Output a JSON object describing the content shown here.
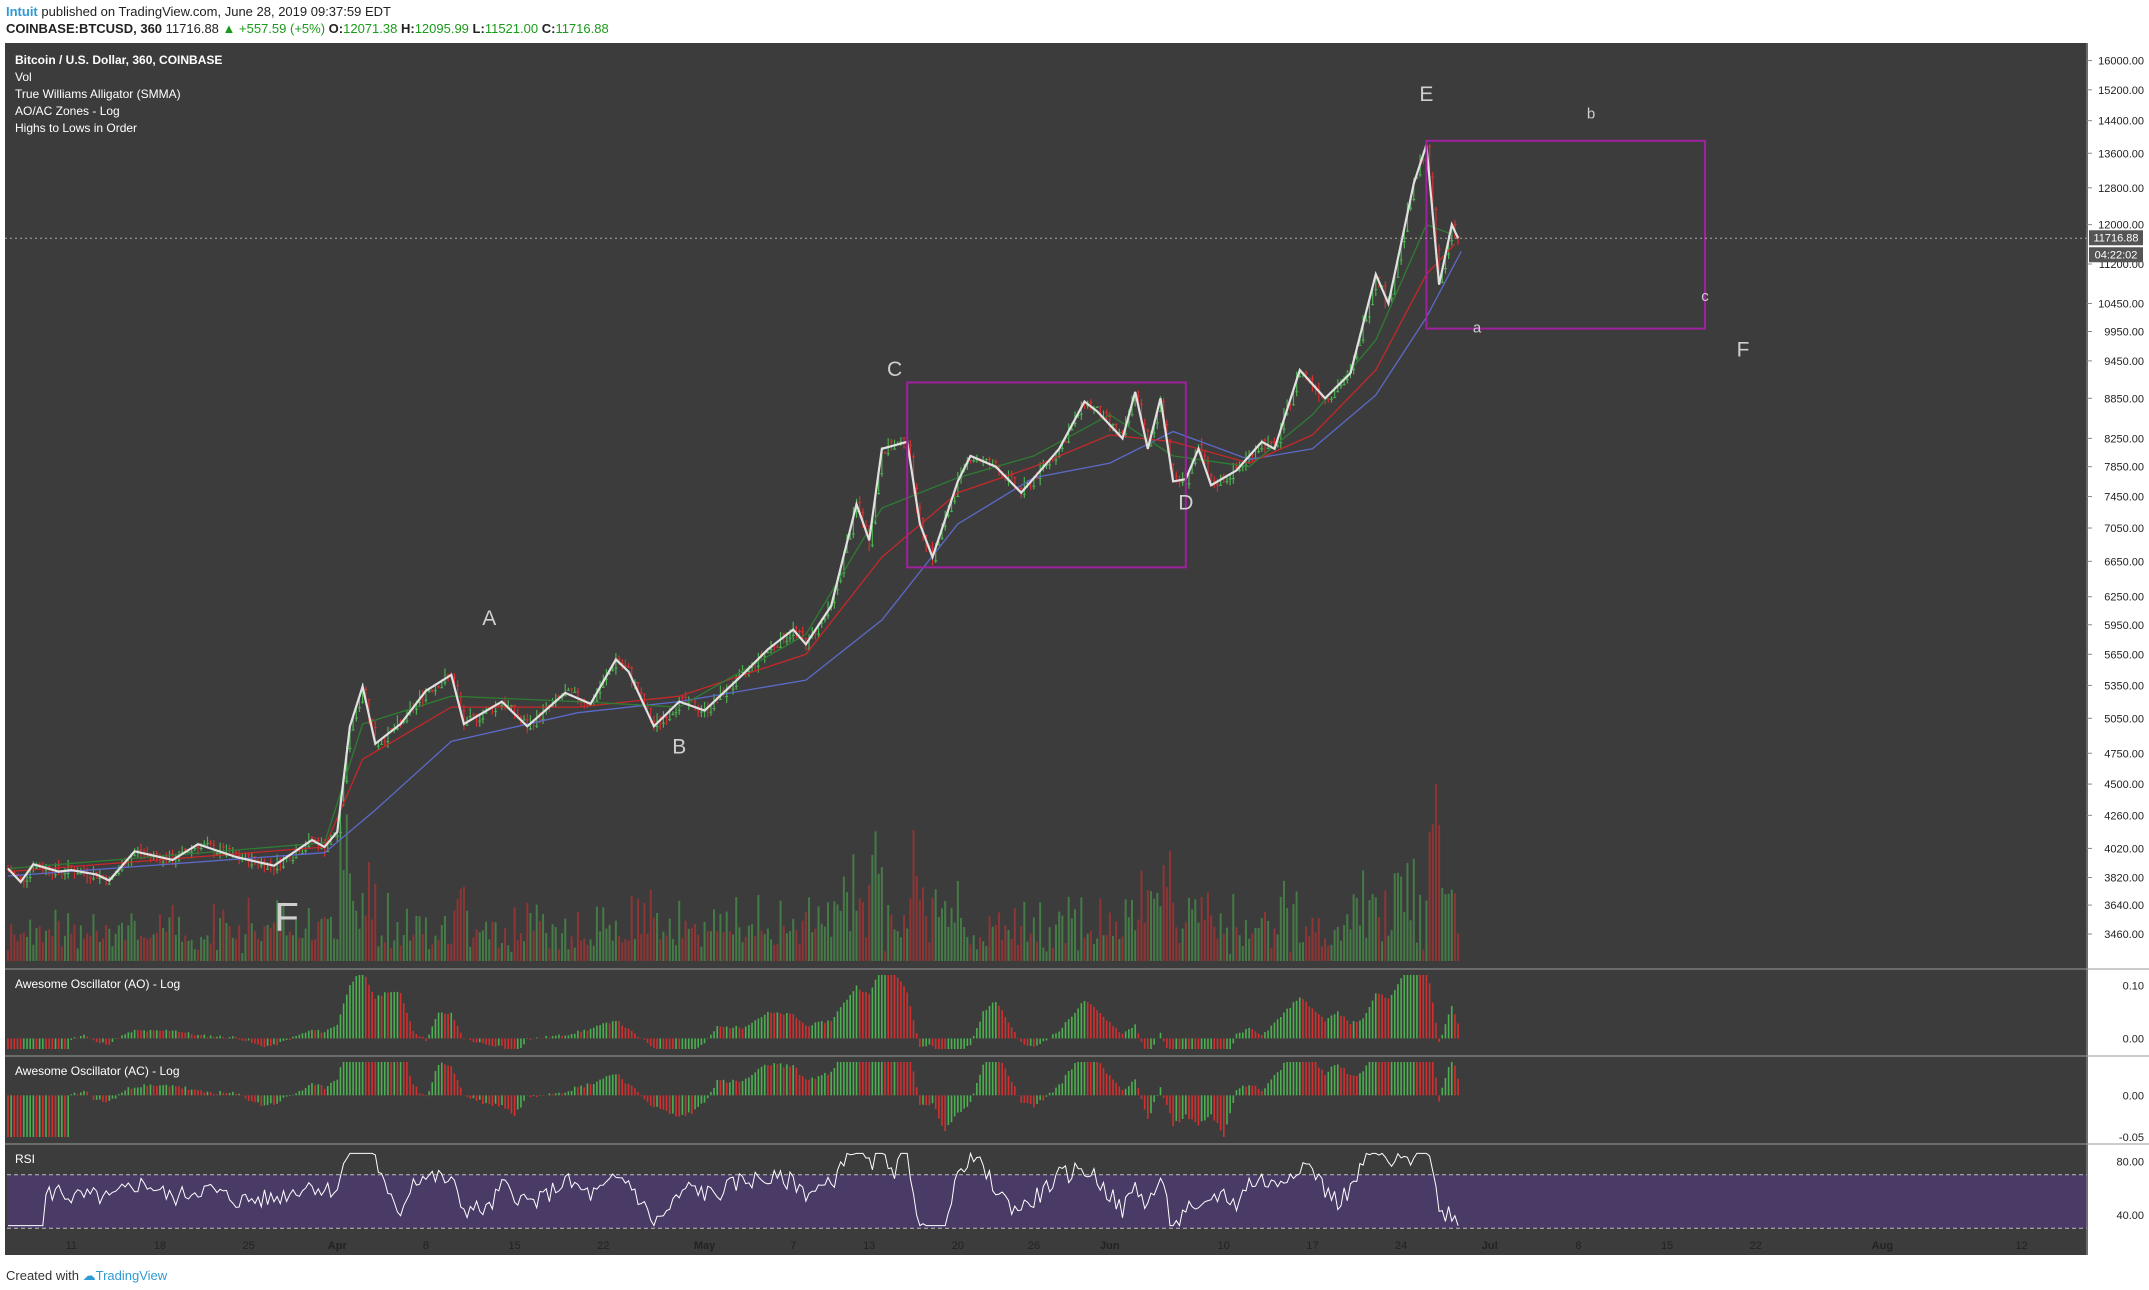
{
  "header": {
    "author": "Intuit",
    "published_text": "published on TradingView.com, June 28, 2019 09:37:59 EDT",
    "symbol": "COINBASE:BTCUSD, 360",
    "price": "11716.88",
    "change": "▲ +557.59 (+5%)",
    "o_label": "O:",
    "o_value": "12071.38",
    "h_label": "H:",
    "h_value": "12095.99",
    "l_label": "L:",
    "l_value": "11521.00",
    "c_label": "C:",
    "c_value": "11716.88"
  },
  "legend": {
    "title": "Bitcoin / U.S. Dollar, 360, COINBASE",
    "items": [
      "Vol",
      "True Williams Alligator (SMMA)",
      "AO/AC Zones - Log",
      "Highs to Lows in Order"
    ]
  },
  "panels": {
    "ao_title": "Awesome Oscillator (AO) - Log",
    "ac_title": "Awesome Oscillator (AC) - Log",
    "rsi_title": "RSI"
  },
  "price_badge": "11716.88",
  "countdown_badge": "04:22:02",
  "footer": {
    "created_with": "Created with",
    "brand": "TradingView"
  },
  "colors": {
    "background": "#3c3c3c",
    "up": "#4caf50",
    "down": "#d32f2f",
    "zigzag": "#e0e0e0",
    "box": "#a020a0",
    "jaw": "#5b6ac9",
    "teeth": "#c62828",
    "lips": "#2e7d32",
    "rsi_band": "#4a3a66"
  },
  "chart_data": {
    "type": "candlestick",
    "title": "Bitcoin / U.S. Dollar, 360, COINBASE",
    "scale": "log",
    "ylim": [
      3300,
      16500
    ],
    "y_ticks": [
      "16000.00",
      "15200.00",
      "14400.00",
      "13600.00",
      "12800.00",
      "12000.00",
      "11200.00",
      "10450.00",
      "9950.00",
      "9450.00",
      "8850.00",
      "8250.00",
      "7850.00",
      "7450.00",
      "7050.00",
      "6650.00",
      "6250.00",
      "5950.00",
      "5650.00",
      "5350.00",
      "5050.00",
      "4750.00",
      "4500.00",
      "4260.00",
      "4020.00",
      "3820.00",
      "3640.00",
      "3460.00"
    ],
    "x_ticks": [
      "11",
      "18",
      "25",
      "Apr",
      "8",
      "15",
      "22",
      "May",
      "7",
      "13",
      "20",
      "26",
      "Jun",
      "10",
      "17",
      "24",
      "Jul",
      "8",
      "15",
      "22",
      "Aug",
      "12"
    ],
    "x_tick_dates": [
      "2019-03-11",
      "2019-03-18",
      "2019-03-25",
      "2019-04-01",
      "2019-04-08",
      "2019-04-15",
      "2019-04-22",
      "2019-04-30",
      "2019-05-07",
      "2019-05-13",
      "2019-05-20",
      "2019-05-26",
      "2019-06-01",
      "2019-06-10",
      "2019-06-17",
      "2019-06-24",
      "2019-07-01",
      "2019-07-08",
      "2019-07-15",
      "2019-07-22",
      "2019-08-01",
      "2019-08-12"
    ],
    "x_range": [
      "2019-03-06",
      "2019-08-17"
    ],
    "last_price": 11716.88,
    "grid": false,
    "zigzag": [
      [
        "2019-03-06",
        3880
      ],
      [
        "2019-03-07",
        3790
      ],
      [
        "2019-03-08",
        3910
      ],
      [
        "2019-03-10",
        3860
      ],
      [
        "2019-03-11",
        3870
      ],
      [
        "2019-03-13",
        3840
      ],
      [
        "2019-03-14",
        3800
      ],
      [
        "2019-03-16",
        4000
      ],
      [
        "2019-03-19",
        3940
      ],
      [
        "2019-03-21",
        4050
      ],
      [
        "2019-03-24",
        3960
      ],
      [
        "2019-03-27",
        3900
      ],
      [
        "2019-03-30",
        4080
      ],
      [
        "2019-03-31",
        4030
      ],
      [
        "2019-04-01",
        4140
      ],
      [
        "2019-04-02",
        4980
      ],
      [
        "2019-04-03",
        5340
      ],
      [
        "2019-04-04",
        4830
      ],
      [
        "2019-04-06",
        5000
      ],
      [
        "2019-04-08",
        5300
      ],
      [
        "2019-04-10",
        5450
      ],
      [
        "2019-04-11",
        5000
      ],
      [
        "2019-04-14",
        5200
      ],
      [
        "2019-04-16",
        4980
      ],
      [
        "2019-04-19",
        5280
      ],
      [
        "2019-04-21",
        5180
      ],
      [
        "2019-04-23",
        5600
      ],
      [
        "2019-04-24",
        5480
      ],
      [
        "2019-04-26",
        4980
      ],
      [
        "2019-04-28",
        5200
      ],
      [
        "2019-04-30",
        5120
      ],
      [
        "2019-05-03",
        5450
      ],
      [
        "2019-05-05",
        5700
      ],
      [
        "2019-05-07",
        5900
      ],
      [
        "2019-05-08",
        5750
      ],
      [
        "2019-05-10",
        6150
      ],
      [
        "2019-05-12",
        7350
      ],
      [
        "2019-05-13",
        6900
      ],
      [
        "2019-05-14",
        8100
      ],
      [
        "2019-05-16",
        8200
      ],
      [
        "2019-05-17",
        7100
      ],
      [
        "2019-05-18",
        6700
      ],
      [
        "2019-05-20",
        7650
      ],
      [
        "2019-05-21",
        8000
      ],
      [
        "2019-05-23",
        7850
      ],
      [
        "2019-05-25",
        7500
      ],
      [
        "2019-05-28",
        8100
      ],
      [
        "2019-05-30",
        8800
      ],
      [
        "2019-05-31",
        8650
      ],
      [
        "2019-06-02",
        8250
      ],
      [
        "2019-06-03",
        8950
      ],
      [
        "2019-06-04",
        8100
      ],
      [
        "2019-06-05",
        8850
      ],
      [
        "2019-06-06",
        7650
      ],
      [
        "2019-06-07",
        7680
      ],
      [
        "2019-06-08",
        8100
      ],
      [
        "2019-06-09",
        7600
      ],
      [
        "2019-06-11",
        7800
      ],
      [
        "2019-06-13",
        8200
      ],
      [
        "2019-06-14",
        8100
      ],
      [
        "2019-06-16",
        9300
      ],
      [
        "2019-06-18",
        8850
      ],
      [
        "2019-06-20",
        9250
      ],
      [
        "2019-06-22",
        11000
      ],
      [
        "2019-06-23",
        10450
      ],
      [
        "2019-06-25",
        12900
      ],
      [
        "2019-06-26",
        13800
      ],
      [
        "2019-06-27",
        10800
      ],
      [
        "2019-06-28",
        12000
      ],
      [
        "2019-06-28T12",
        11716.88
      ]
    ],
    "alligator": {
      "jaw": [
        [
          "2019-03-06",
          3830
        ],
        [
          "2019-03-31",
          3990
        ],
        [
          "2019-04-04",
          4300
        ],
        [
          "2019-04-10",
          4850
        ],
        [
          "2019-04-20",
          5100
        ],
        [
          "2019-04-28",
          5200
        ],
        [
          "2019-05-08",
          5400
        ],
        [
          "2019-05-14",
          6000
        ],
        [
          "2019-05-20",
          7100
        ],
        [
          "2019-05-26",
          7700
        ],
        [
          "2019-06-01",
          7900
        ],
        [
          "2019-06-06",
          8350
        ],
        [
          "2019-06-12",
          7950
        ],
        [
          "2019-06-17",
          8100
        ],
        [
          "2019-06-22",
          8900
        ],
        [
          "2019-06-26",
          10200
        ],
        [
          "2019-06-28T18",
          11450
        ]
      ],
      "teeth": [
        [
          "2019-03-06",
          3860
        ],
        [
          "2019-03-31",
          4030
        ],
        [
          "2019-04-03",
          4700
        ],
        [
          "2019-04-10",
          5150
        ],
        [
          "2019-04-20",
          5150
        ],
        [
          "2019-04-28",
          5250
        ],
        [
          "2019-05-08",
          5650
        ],
        [
          "2019-05-14",
          6700
        ],
        [
          "2019-05-20",
          7500
        ],
        [
          "2019-05-26",
          7850
        ],
        [
          "2019-06-01",
          8300
        ],
        [
          "2019-06-06",
          8200
        ],
        [
          "2019-06-12",
          7900
        ],
        [
          "2019-06-17",
          8300
        ],
        [
          "2019-06-22",
          9300
        ],
        [
          "2019-06-26",
          11000
        ],
        [
          "2019-06-28T06",
          11600
        ]
      ],
      "lips": [
        [
          "2019-03-06",
          3880
        ],
        [
          "2019-03-31",
          4060
        ],
        [
          "2019-04-03",
          5000
        ],
        [
          "2019-04-10",
          5250
        ],
        [
          "2019-04-20",
          5200
        ],
        [
          "2019-04-28",
          5150
        ],
        [
          "2019-05-08",
          5850
        ],
        [
          "2019-05-14",
          7300
        ],
        [
          "2019-05-20",
          7700
        ],
        [
          "2019-05-26",
          8000
        ],
        [
          "2019-06-01",
          8600
        ],
        [
          "2019-06-06",
          8000
        ],
        [
          "2019-06-12",
          7850
        ],
        [
          "2019-06-17",
          8600
        ],
        [
          "2019-06-22",
          9800
        ],
        [
          "2019-06-26",
          12000
        ],
        [
          "2019-06-28",
          11800
        ]
      ]
    },
    "boxes": [
      {
        "from": "2019-05-16",
        "to": "2019-06-07",
        "high": 9100,
        "low": 6580
      },
      {
        "from": "2019-06-26",
        "to": "2019-07-18",
        "high": 13900,
        "low": 10000
      }
    ],
    "annotations": [
      {
        "text": "A",
        "date": "2019-04-13",
        "price": 5950
      },
      {
        "text": "B",
        "date": "2019-04-28",
        "price": 4750
      },
      {
        "text": "C",
        "date": "2019-05-15",
        "price": 9200
      },
      {
        "text": "D",
        "date": "2019-06-07",
        "price": 7280
      },
      {
        "text": "E",
        "date": "2019-06-26",
        "price": 14900
      },
      {
        "text": "b",
        "date": "2019-07-09",
        "price": 14450
      },
      {
        "text": "c",
        "date": "2019-07-18",
        "price": 10500
      },
      {
        "text": "a",
        "date": "2019-06-30",
        "price": 9930
      },
      {
        "text": "F",
        "date": "2019-07-21",
        "price": 9520
      },
      {
        "text": "F",
        "date": "2019-03-28",
        "price": 3480
      }
    ],
    "ao": {
      "ylim": [
        -0.02,
        0.12
      ],
      "ticks": [
        "0.10",
        "0.00"
      ]
    },
    "ac": {
      "ylim": [
        -0.05,
        0.04
      ],
      "ticks": [
        "0.00",
        "-0.05"
      ]
    },
    "rsi": {
      "ylim": [
        25,
        90
      ],
      "ticks": [
        "80.00",
        "40.00"
      ],
      "band": [
        30,
        70
      ]
    }
  }
}
